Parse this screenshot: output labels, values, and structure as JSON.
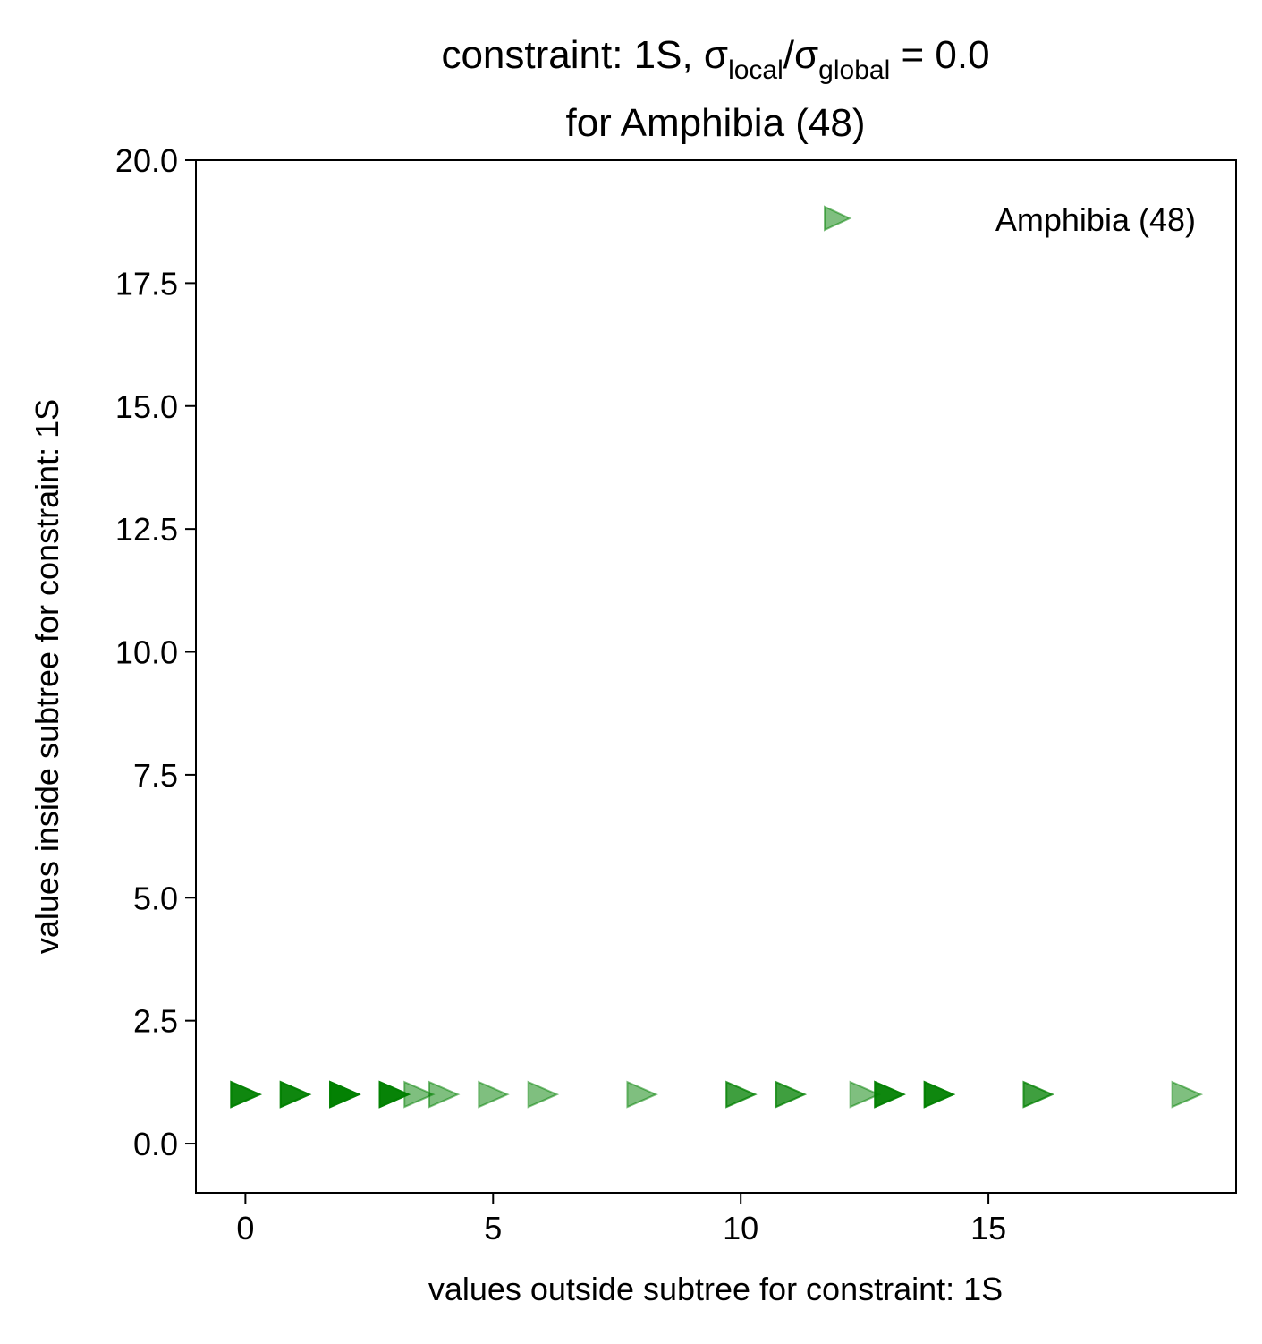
{
  "chart_data": {
    "type": "scatter",
    "title": {
      "line1_prefix": "constraint: 1S, σ",
      "line1_sub1": "local",
      "line1_mid": "/σ",
      "line1_sub2": "global",
      "line1_suffix": " =  0.0",
      "line2": "for Amphibia (48)"
    },
    "xlabel": "values outside subtree for constraint: 1S",
    "ylabel": "values inside subtree for constraint: 1S",
    "xlim": [
      -1,
      20
    ],
    "ylim": [
      -1,
      20
    ],
    "xticks": [
      0,
      5,
      10,
      15
    ],
    "xtick_labels": [
      "0",
      "5",
      "10",
      "15"
    ],
    "yticks": [
      0,
      2.5,
      5,
      7.5,
      10,
      12.5,
      15,
      17.5,
      20
    ],
    "ytick_labels": [
      "0.0",
      "2.5",
      "5.0",
      "7.5",
      "10.0",
      "12.5",
      "15.0",
      "17.5",
      "20.0"
    ],
    "grid": false,
    "legend": {
      "placement": "top-right",
      "entries": [
        {
          "label": "Amphibia (48)",
          "marker": "triangle-right",
          "color": "#008000",
          "alpha": 0.5
        }
      ]
    },
    "series": [
      {
        "name": "Amphibia (48)",
        "marker": "triangle-right",
        "color": "#008000",
        "alpha": 0.5,
        "points": [
          {
            "x": 0,
            "y": 1,
            "stack": 4
          },
          {
            "x": 1,
            "y": 1,
            "stack": 4
          },
          {
            "x": 2,
            "y": 1,
            "stack": 6
          },
          {
            "x": 3,
            "y": 1,
            "stack": 5
          },
          {
            "x": 3.5,
            "y": 1,
            "stack": 1
          },
          {
            "x": 4,
            "y": 1,
            "stack": 1
          },
          {
            "x": 5,
            "y": 1,
            "stack": 1
          },
          {
            "x": 6,
            "y": 1,
            "stack": 1
          },
          {
            "x": 8,
            "y": 1,
            "stack": 1
          },
          {
            "x": 10,
            "y": 1,
            "stack": 2
          },
          {
            "x": 11,
            "y": 1,
            "stack": 2
          },
          {
            "x": 12.5,
            "y": 1,
            "stack": 1
          },
          {
            "x": 13,
            "y": 1,
            "stack": 4
          },
          {
            "x": 14,
            "y": 1,
            "stack": 4
          },
          {
            "x": 16,
            "y": 1,
            "stack": 2
          },
          {
            "x": 19,
            "y": 1,
            "stack": 1
          }
        ]
      }
    ]
  }
}
